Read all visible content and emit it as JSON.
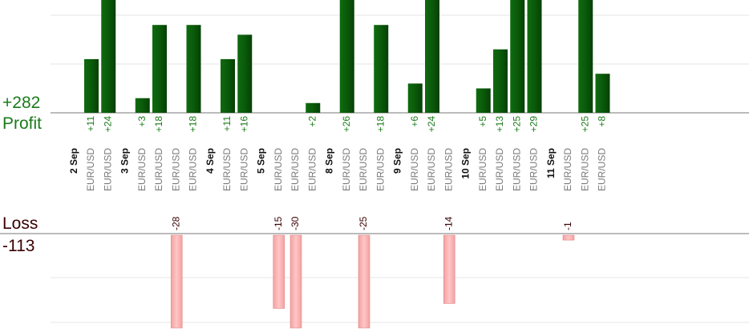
{
  "summary": {
    "profit_total": "+282",
    "profit_label": "Profit",
    "loss_label": "Loss",
    "loss_total": "-113"
  },
  "colors": {
    "profit": "#1a7a1a",
    "profit_bar": "#0b5e0b",
    "loss_text": "#3a0000",
    "loss_bar": "#f7aaaa",
    "day_label": "#111111",
    "pair_label": "#7a7a7a",
    "grid": "#e4e4e4",
    "baseline": "#777777"
  },
  "chart_data": {
    "type": "bar",
    "title": "",
    "xlabel": "",
    "ylabel": "",
    "profit_ylim": [
      0,
      32
    ],
    "loss_ylim": [
      -32,
      0
    ],
    "grid": true,
    "days": [
      "2 Sep",
      "3 Sep",
      "4 Sep",
      "5 Sep",
      "8 Sep",
      "9 Sep",
      "10 Sep",
      "11 Sep"
    ],
    "pair": "EUR/USD",
    "trades": [
      {
        "day": 0,
        "value": 11,
        "label": "+11"
      },
      {
        "day": 0,
        "value": 24,
        "label": "+24"
      },
      {
        "day": 1,
        "value": 3,
        "label": "+3"
      },
      {
        "day": 1,
        "value": 18,
        "label": "+18"
      },
      {
        "day": 1,
        "value": -28,
        "label": "-28"
      },
      {
        "day": 1,
        "value": 18,
        "label": "+18"
      },
      {
        "day": 2,
        "value": 11,
        "label": "+11"
      },
      {
        "day": 2,
        "value": 16,
        "label": "+16"
      },
      {
        "day": 3,
        "value": -15,
        "label": "-15"
      },
      {
        "day": 3,
        "value": -30,
        "label": "-30"
      },
      {
        "day": 3,
        "value": 2,
        "label": "+2"
      },
      {
        "day": 4,
        "value": 26,
        "label": "+26"
      },
      {
        "day": 4,
        "value": -25,
        "label": "-25"
      },
      {
        "day": 4,
        "value": 18,
        "label": "+18"
      },
      {
        "day": 5,
        "value": 6,
        "label": "+6"
      },
      {
        "day": 5,
        "value": 24,
        "label": "+24"
      },
      {
        "day": 5,
        "value": -14,
        "label": "-14"
      },
      {
        "day": 6,
        "value": 5,
        "label": "+5"
      },
      {
        "day": 6,
        "value": 13,
        "label": "+13"
      },
      {
        "day": 6,
        "value": 25,
        "label": "+25"
      },
      {
        "day": 6,
        "value": 29,
        "label": "+29"
      },
      {
        "day": 7,
        "value": -1,
        "label": "-1"
      },
      {
        "day": 7,
        "value": 25,
        "label": "+25"
      },
      {
        "day": 7,
        "value": 8,
        "label": "+8"
      }
    ]
  }
}
